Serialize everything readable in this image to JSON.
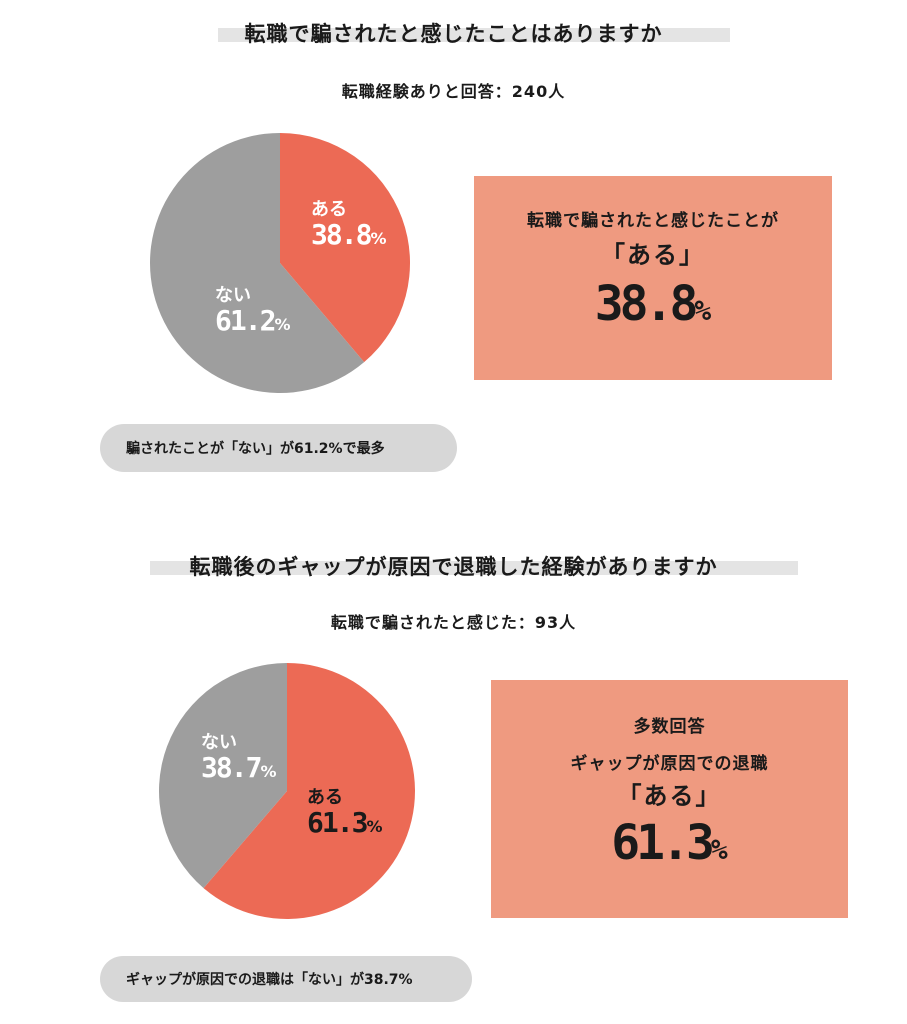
{
  "colors": {
    "yes": "#ec6a55",
    "no": "#9e9e9e",
    "callout": "#ef9a80",
    "pill": "#d7d7d7"
  },
  "chart_data": [
    {
      "type": "pie",
      "title": "転職で騙されたと感じたことはありますか",
      "subtitle": "転職経験ありと回答：240人",
      "slices": [
        {
          "label": "ある",
          "value": 38.8,
          "display": "38.8",
          "color": "#ec6a55"
        },
        {
          "label": "ない",
          "value": 61.2,
          "display": "61.2",
          "color": "#9e9e9e"
        }
      ],
      "unit": "%",
      "callout": {
        "line1": "転職で騙されたと感じたことが",
        "quote": "「ある」",
        "value": "38.8"
      },
      "note": "騙されたことが「ない」が61.2%で最多"
    },
    {
      "type": "pie",
      "title": "転職後のギャップが原因で退職した経験がありますか",
      "subtitle": "転職で騙されたと感じた：93人",
      "slices": [
        {
          "label": "ある",
          "value": 61.3,
          "display": "61.3",
          "color": "#ec6a55"
        },
        {
          "label": "ない",
          "value": 38.7,
          "display": "38.7",
          "color": "#9e9e9e"
        }
      ],
      "unit": "%",
      "callout": {
        "line0": "多数回答",
        "line1": "ギャップが原因での退職",
        "quote": "「ある」",
        "value": "61.3"
      },
      "note": "ギャップが原因での退職は「ない」が38.7%"
    }
  ]
}
